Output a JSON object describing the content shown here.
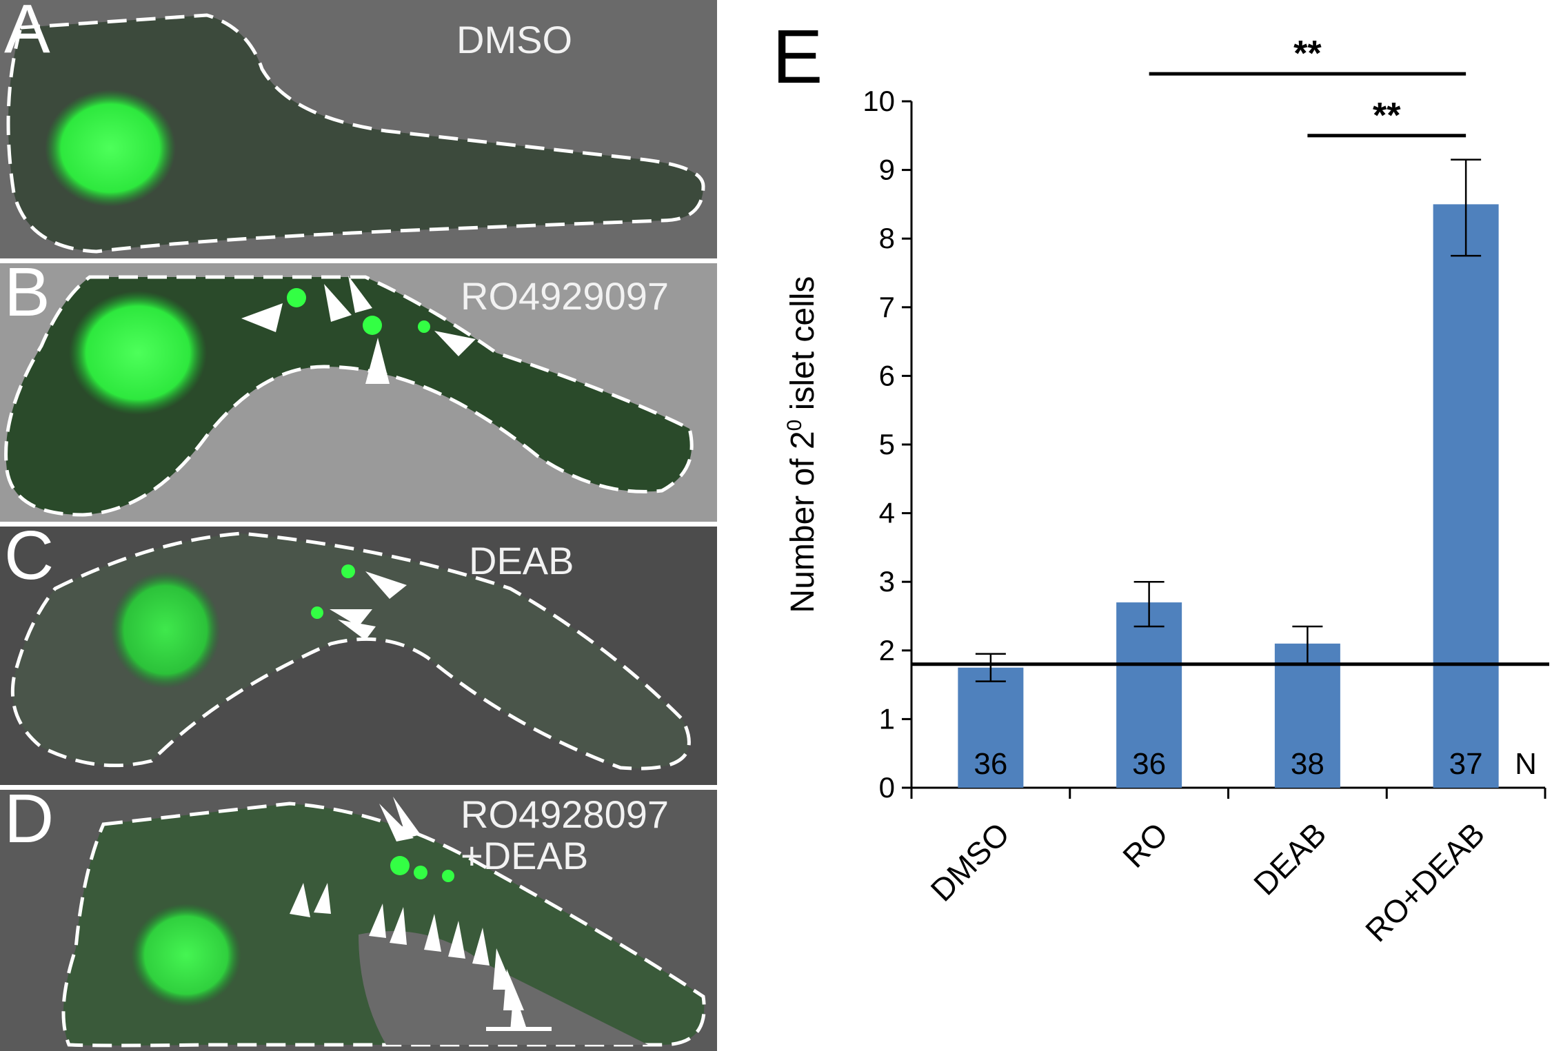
{
  "panels": [
    {
      "letter": "A",
      "label": "DMSO"
    },
    {
      "letter": "B",
      "label": "RO4929097"
    },
    {
      "letter": "C",
      "label": "DEAB"
    },
    {
      "letter": "D",
      "label_line1": "RO4928097",
      "label_line2": "+DEAB"
    }
  ],
  "colors": {
    "bar": "#4f81bd",
    "gfp": "#33ff44",
    "outline": "#ffffff",
    "tissue": "#3c4a3c"
  },
  "chart_data": {
    "panel_letter": "E",
    "type": "bar",
    "categories": [
      "DMSO",
      "RO",
      "DEAB",
      "RO+DEAB"
    ],
    "values": [
      1.75,
      2.7,
      2.1,
      8.5
    ],
    "error_low": [
      1.55,
      2.35,
      1.8,
      7.75
    ],
    "error_high": [
      1.95,
      3.0,
      2.35,
      9.15
    ],
    "n_values": [
      "36",
      "36",
      "38",
      "37"
    ],
    "n_label": "N",
    "ylabel_prefix": "Number of 2",
    "ylabel_sup": "0",
    "ylabel_suffix": " islet cells",
    "ylim": [
      0,
      10
    ],
    "yticks": [
      0,
      1,
      2,
      3,
      4,
      5,
      6,
      7,
      8,
      9,
      10
    ],
    "reference_line": 1.8,
    "significance": [
      {
        "from": "RO",
        "to": "RO+DEAB",
        "y": 10.4,
        "label": "**"
      },
      {
        "from": "DEAB",
        "to": "RO+DEAB",
        "y": 9.5,
        "label": "**"
      }
    ]
  }
}
